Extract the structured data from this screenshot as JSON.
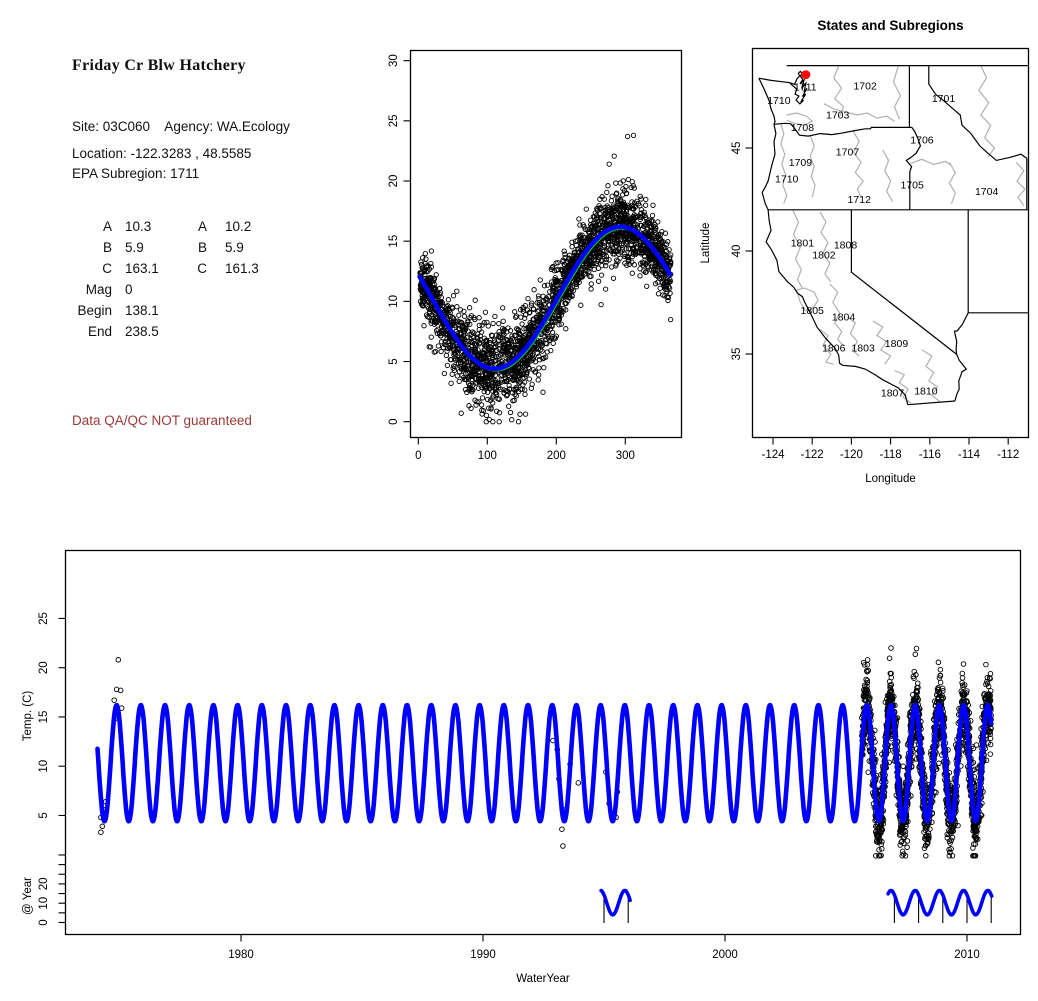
{
  "page": {
    "background": "#ffffff"
  },
  "info_panel": {
    "title": "Friday Cr Blw Hatchery",
    "site_line": "Site: 03C060    Agency: WA.Ecology",
    "location_line": "Location: -122.3283 , 48.5585",
    "subregion_line": "EPA Subregion: 1711",
    "stats_rows": [
      {
        "label": "A",
        "value": "10.3",
        "label2": "A",
        "value2": "10.2"
      },
      {
        "label": "B",
        "value": "5.9",
        "label2": "B",
        "value2": "5.9"
      },
      {
        "label": "C",
        "value": "163.1",
        "label2": "C",
        "value2": "161.3"
      },
      {
        "label": "Mag",
        "value": "0",
        "label2": "",
        "value2": ""
      },
      {
        "label": "Begin",
        "value": "138.1",
        "label2": "",
        "value2": ""
      },
      {
        "label": "End",
        "value": "238.5",
        "label2": "",
        "value2": ""
      }
    ],
    "warning": "Data QA/QC NOT guaranteed",
    "warning_color": "#9e3939"
  },
  "chart_data": [
    {
      "id": "seasonal_fit",
      "type": "scatter",
      "title": "",
      "xlabel": "",
      "ylabel": "",
      "xlim": [
        -11,
        381
      ],
      "ylim": [
        -1.3,
        31.2
      ],
      "xticks": [
        0,
        100,
        200,
        300
      ],
      "yticks": [
        0,
        5,
        10,
        15,
        20,
        25,
        30
      ],
      "point_color": "#000000",
      "point_marker": "open-circle",
      "scatter_model": {
        "n": 2600,
        "mean": 10.3,
        "amplitude": 5.9,
        "phase_C": 163.1,
        "period": 365,
        "noise_sd_base": 1.25,
        "seed": 1234
      },
      "fit_green": {
        "A": 10.2,
        "B": 5.9,
        "C": 161.3,
        "period": 365,
        "color": "#00dd00"
      },
      "fit_blue": {
        "A": 10.3,
        "B": 5.9,
        "C": 163.1,
        "period": 365,
        "color": "#0000ff"
      }
    },
    {
      "id": "map",
      "type": "map",
      "title": "States and Subregions",
      "xlabel": "Longitude",
      "ylabel": "Latitude",
      "xticks": [
        -124,
        -122,
        -120,
        -118,
        -116,
        -114,
        -112
      ],
      "yticks": [
        35,
        40,
        45
      ],
      "xlim": [
        -125.1,
        -110.9
      ],
      "ylim": [
        30.9,
        49.9
      ],
      "site_marker": {
        "lon": -122.3283,
        "lat": 48.5585,
        "color": "#ff0000"
      },
      "state_border_color": "#000000",
      "subregion_border_color": "#b0b0b0",
      "subregion_labels": [
        {
          "code": "1711",
          "lon": -122.35,
          "lat": 47.95
        },
        {
          "code": "1702",
          "lon": -119.3,
          "lat": 48.0
        },
        {
          "code": "1701",
          "lon": -115.3,
          "lat": 47.4
        },
        {
          "code": "1710",
          "lon": -123.7,
          "lat": 47.3
        },
        {
          "code": "1703",
          "lon": -120.7,
          "lat": 46.6
        },
        {
          "code": "1708",
          "lon": -122.5,
          "lat": 46.0
        },
        {
          "code": "1706",
          "lon": -116.4,
          "lat": 45.4
        },
        {
          "code": "1707",
          "lon": -120.2,
          "lat": 44.8
        },
        {
          "code": "1709",
          "lon": -122.6,
          "lat": 44.3
        },
        {
          "code": "1710",
          "lon": -123.3,
          "lat": 43.5
        },
        {
          "code": "1705",
          "lon": -116.9,
          "lat": 43.2
        },
        {
          "code": "1704",
          "lon": -113.1,
          "lat": 42.9
        },
        {
          "code": "1712",
          "lon": -119.6,
          "lat": 42.5
        },
        {
          "code": "1801",
          "lon": -122.5,
          "lat": 40.4
        },
        {
          "code": "1808",
          "lon": -120.3,
          "lat": 40.3
        },
        {
          "code": "1802",
          "lon": -121.4,
          "lat": 39.8
        },
        {
          "code": "1805",
          "lon": -122.0,
          "lat": 37.1
        },
        {
          "code": "1804",
          "lon": -120.4,
          "lat": 36.8
        },
        {
          "code": "1806",
          "lon": -120.9,
          "lat": 35.3
        },
        {
          "code": "1803",
          "lon": -119.4,
          "lat": 35.3
        },
        {
          "code": "1809",
          "lon": -117.7,
          "lat": 35.5
        },
        {
          "code": "1807",
          "lon": -117.9,
          "lat": 33.1
        },
        {
          "code": "1810",
          "lon": -116.2,
          "lat": 33.2
        }
      ]
    },
    {
      "id": "timeseries",
      "type": "line+scatter",
      "xlabel": "WaterYear",
      "ylabel": "Temp. (C)",
      "ylabel2": "@ Year",
      "xticks": [
        1980,
        1990,
        2000,
        2010
      ],
      "yticks": [
        5,
        10,
        15,
        20,
        25
      ],
      "y2ticks_labeled": [
        0,
        10,
        20
      ],
      "y2ticks_all": [
        0,
        5,
        10,
        15,
        20,
        25,
        30,
        35
      ],
      "xlim": [
        1972.7,
        2012.2
      ],
      "ylim": [
        0,
        32
      ],
      "fit_line": {
        "color": "#0000ff",
        "A": 10.3,
        "B": 5.9,
        "peak_frac": 0.86,
        "t_start": 1974.07,
        "t_end": 2010.99
      },
      "sparse_points_1974": [
        [
          1974.21,
          4.8
        ],
        [
          1974.21,
          3.3
        ],
        [
          1974.27,
          3.9
        ],
        [
          1974.31,
          5.6
        ],
        [
          1974.41,
          6.4
        ],
        [
          1974.76,
          16.7
        ],
        [
          1974.79,
          14.8
        ],
        [
          1974.86,
          17.8
        ],
        [
          1974.93,
          20.8
        ],
        [
          1975.03,
          17.7
        ],
        [
          1975.07,
          15.9
        ]
      ],
      "sparse_points_1990s": [
        [
          1992.89,
          12.6
        ],
        [
          1993.07,
          11.7
        ],
        [
          1993.14,
          8.7
        ],
        [
          1993.26,
          3.6
        ],
        [
          1993.3,
          1.9
        ],
        [
          1993.43,
          5.6
        ],
        [
          1993.6,
          10.2
        ],
        [
          1993.94,
          8.3
        ],
        [
          1995.08,
          9.4
        ],
        [
          1995.21,
          6.2
        ],
        [
          1995.5,
          4.8
        ],
        [
          1995.55,
          7.4
        ]
      ],
      "dense_cluster": {
        "t_start": 2005.65,
        "t_end": 2011.0,
        "n": 2100,
        "noise_sd": 1.6,
        "seed": 99,
        "clamp": [
          0.9,
          22.0
        ]
      },
      "inset": {
        "mean": 10.3,
        "amplitude": 6.3,
        "peak_frac": 0.86,
        "color": "#0000ff",
        "segments": [
          {
            "t_start": 1994.88,
            "t_end": 1996.08,
            "year_marks": [
              1995,
              1996
            ]
          },
          {
            "t_start": 2006.74,
            "t_end": 2011.02,
            "year_marks": [
              2007,
              2008,
              2009,
              2010,
              2011
            ]
          }
        ]
      }
    }
  ]
}
